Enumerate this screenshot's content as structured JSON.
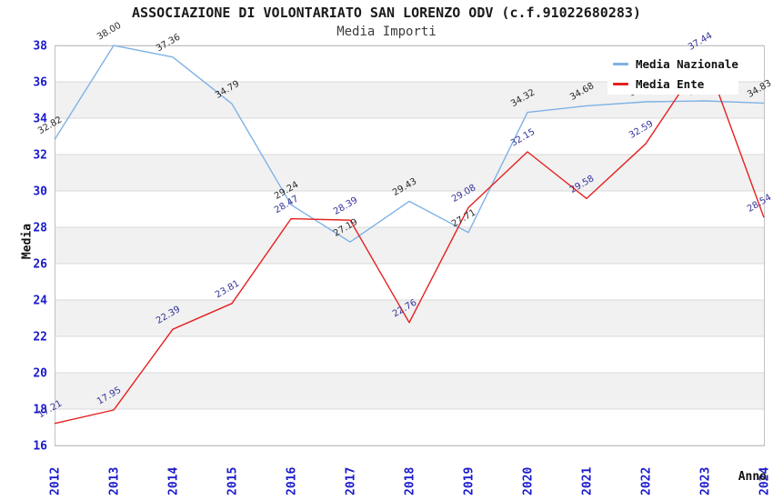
{
  "header": {
    "title": "ASSOCIAZIONE DI VOLONTARIATO SAN LORENZO ODV (c.f.91022680283)",
    "subtitle": "Media Importi"
  },
  "colors": {
    "tick_label": "#1a1acc",
    "band": "#f1f1f1",
    "grid": "#d9d9d9",
    "border": "#c2c2c2",
    "nazionale_line": "#7fb2e5",
    "ente_line": "#e62020",
    "nazionale_label": "#2b2b2b",
    "ente_label": "#333399"
  },
  "chart_data": {
    "type": "line",
    "title": "ASSOCIAZIONE DI VOLONTARIATO SAN LORENZO ODV (c.f.91022680283)",
    "subtitle": "Media Importi",
    "x": [
      "2012",
      "2013",
      "2014",
      "2015",
      "2016",
      "2017",
      "2018",
      "2019",
      "2020",
      "2021",
      "2022",
      "2023",
      "2024"
    ],
    "xlabel": "Anno",
    "ylabel": "Media",
    "ylim": [
      16,
      38
    ],
    "ytick_step": 2,
    "grid": true,
    "band_fill_alternate": true,
    "legend_position": "top-right",
    "series": [
      {
        "name": "Media Nazionale",
        "color": "#7fb2e5",
        "label_color": "#2b2b2b",
        "values": [
          32.82,
          38.0,
          37.36,
          34.79,
          29.24,
          27.19,
          29.43,
          27.71,
          34.32,
          34.68,
          34.9,
          34.95,
          34.83
        ]
      },
      {
        "name": "Media Ente",
        "color": "#e62020",
        "label_color": "#333399",
        "values": [
          17.21,
          17.95,
          22.39,
          23.81,
          28.47,
          28.39,
          22.76,
          29.08,
          32.15,
          29.58,
          32.59,
          37.44,
          28.54
        ]
      }
    ]
  }
}
